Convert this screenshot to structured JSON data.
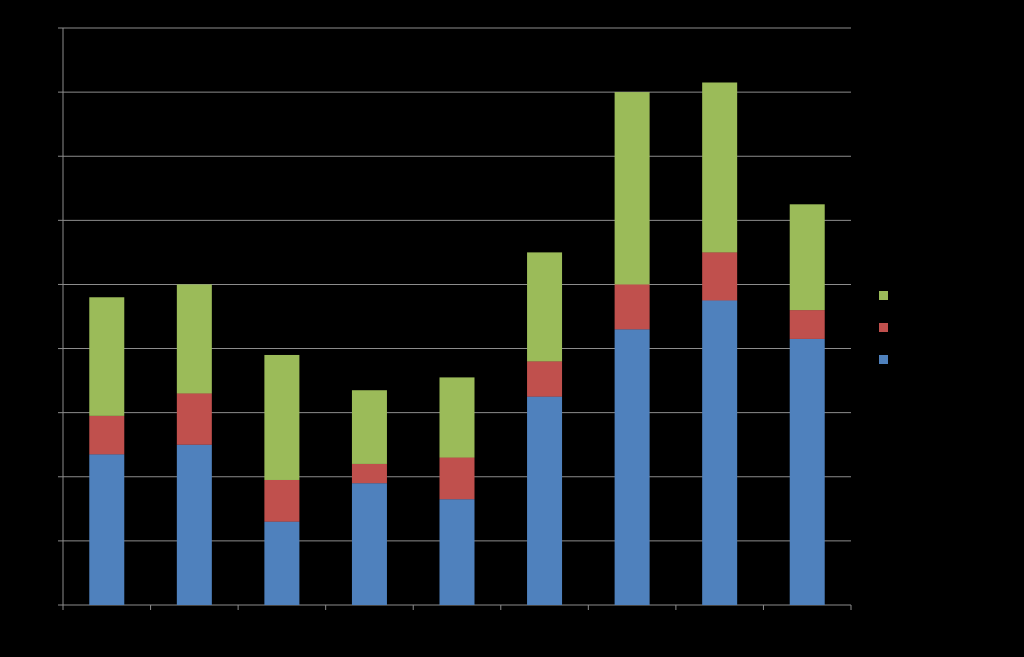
{
  "chart_data": {
    "type": "bar",
    "stacked": true,
    "categories": [
      "",
      "",
      "",
      "",
      "",
      "",
      "",
      "",
      ""
    ],
    "series": [
      {
        "values": [
          23.5,
          25.0,
          13.0,
          19.0,
          16.5,
          32.5,
          43.0,
          47.5,
          41.5
        ],
        "color": "#4F81BD"
      },
      {
        "values": [
          6.0,
          8.0,
          6.5,
          3.0,
          6.5,
          5.5,
          7.0,
          7.5,
          4.5
        ],
        "color": "#C0504D"
      },
      {
        "values": [
          18.5,
          17.0,
          19.5,
          11.5,
          12.5,
          17.0,
          30.0,
          26.5,
          16.5
        ],
        "color": "#9BBB59"
      }
    ],
    "ylim": [
      0,
      90
    ],
    "ytick_step": 10,
    "grid": true,
    "legend": "right",
    "background": "#000000",
    "gridline_color": "#8C8C8C",
    "axis_color": "#8C8C8C"
  }
}
